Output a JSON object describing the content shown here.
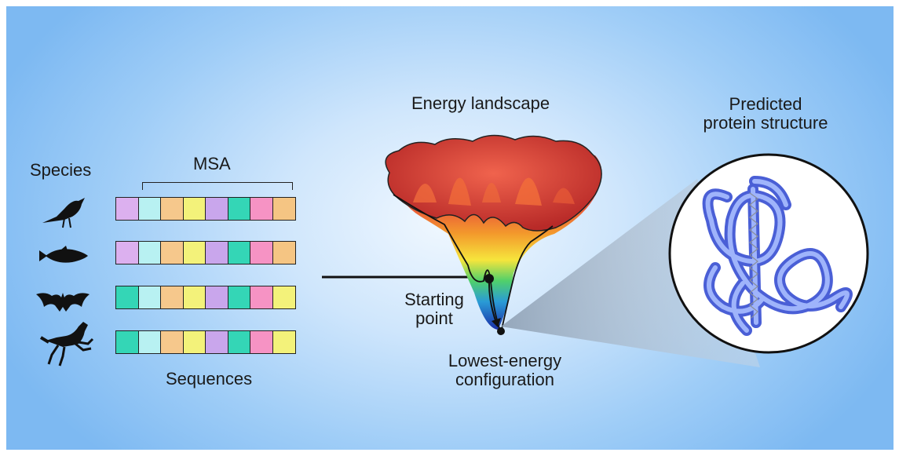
{
  "labels": {
    "species": "Species",
    "msa": "MSA",
    "sequences": "Sequences",
    "energy_landscape": "Energy landscape",
    "starting_point": "Starting\npoint",
    "lowest_energy": "Lowest-energy\nconfiguration",
    "predicted_structure": "Predicted\nprotein structure"
  },
  "species": [
    {
      "icon": "bird-icon"
    },
    {
      "icon": "fish-icon"
    },
    {
      "icon": "bat-icon"
    },
    {
      "icon": "horse-icon"
    }
  ],
  "msa_rows": [
    [
      "#dcb0ef",
      "#b8f1f2",
      "#f6c88c",
      "#f3f27a",
      "#c9a6ec",
      "#34d6b6",
      "#f693c4",
      "#f5c583"
    ],
    [
      "#dcb0ef",
      "#b8f1f2",
      "#f6c88c",
      "#f3f27a",
      "#c9a6ec",
      "#34d6b6",
      "#f693c4",
      "#f5c583"
    ],
    [
      "#34d6b6",
      "#b8f1f2",
      "#f6c88c",
      "#f3f27a",
      "#c9a6ec",
      "#34d6b6",
      "#f693c4",
      "#f3f27a"
    ],
    [
      "#34d6b6",
      "#b8f1f2",
      "#f6c88c",
      "#f3f27a",
      "#c9a6ec",
      "#34d6b6",
      "#f693c4",
      "#f3f27a"
    ]
  ],
  "colors": {
    "background_center": "#f1f8ff",
    "background_edge": "#7db9f2",
    "protein_tube": "#6f86ee",
    "landscape_top": "#d43c32"
  }
}
